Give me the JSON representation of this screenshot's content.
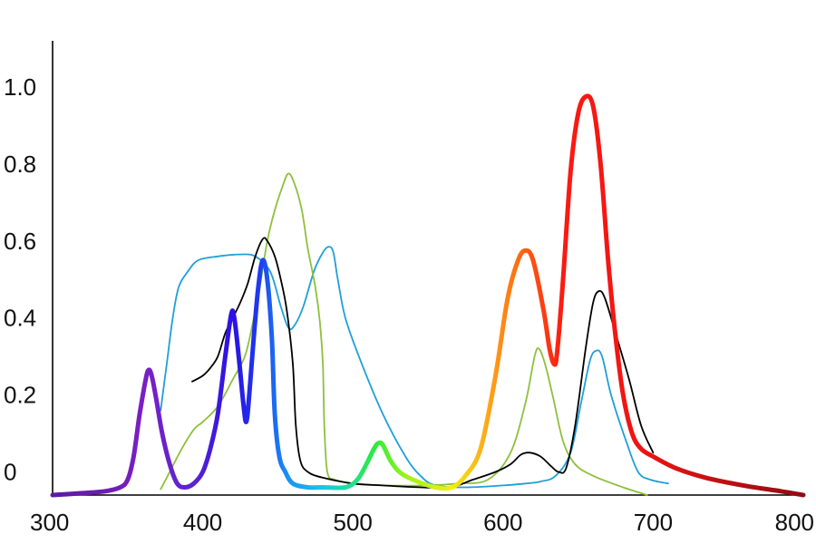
{
  "chart_data": {
    "type": "line",
    "title": "",
    "xlabel": "",
    "ylabel": "",
    "xlim": [
      300,
      800
    ],
    "ylim": [
      -0.06,
      1.12
    ],
    "grid": false,
    "legend": "none",
    "x_ticks": [
      {
        "value": 300,
        "label": "300"
      },
      {
        "value": 400,
        "label": "400"
      },
      {
        "value": 500,
        "label": "500"
      },
      {
        "value": 600,
        "label": "600"
      },
      {
        "value": 700,
        "label": "700"
      },
      {
        "value": 800,
        "label": "800"
      }
    ],
    "y_ticks": [
      {
        "value": 0.0,
        "label": "0"
      },
      {
        "value": 0.2,
        "label": "0.2"
      },
      {
        "value": 0.4,
        "label": "0.4"
      },
      {
        "value": 0.6,
        "label": "0.6"
      },
      {
        "value": 0.8,
        "label": "0.8"
      },
      {
        "value": 1.0,
        "label": "1.0"
      }
    ],
    "series": [
      {
        "id": "emission-spectrum",
        "color_mode": "wavelength-gradient",
        "stroke_width": 5,
        "points": [
          [
            300,
            -0.06
          ],
          [
            320,
            -0.055
          ],
          [
            335,
            -0.05
          ],
          [
            345,
            -0.04
          ],
          [
            350,
            -0.02
          ],
          [
            354,
            0.04
          ],
          [
            358,
            0.15
          ],
          [
            362,
            0.24
          ],
          [
            364,
            0.265
          ],
          [
            366,
            0.25
          ],
          [
            369,
            0.19
          ],
          [
            373,
            0.1
          ],
          [
            378,
            0.02
          ],
          [
            383,
            -0.03
          ],
          [
            388,
            -0.04
          ],
          [
            394,
            -0.03
          ],
          [
            400,
            0.0
          ],
          [
            405,
            0.06
          ],
          [
            410,
            0.15
          ],
          [
            415,
            0.3
          ],
          [
            419,
            0.41
          ],
          [
            421,
            0.4
          ],
          [
            424,
            0.3
          ],
          [
            427,
            0.18
          ],
          [
            429,
            0.13
          ],
          [
            431,
            0.2
          ],
          [
            434,
            0.35
          ],
          [
            437,
            0.48
          ],
          [
            440,
            0.55
          ],
          [
            443,
            0.5
          ],
          [
            446,
            0.35
          ],
          [
            448,
            0.15
          ],
          [
            451,
            0.04
          ],
          [
            455,
            0.0
          ],
          [
            460,
            -0.03
          ],
          [
            470,
            -0.04
          ],
          [
            480,
            -0.04
          ],
          [
            495,
            -0.04
          ],
          [
            503,
            -0.02
          ],
          [
            509,
            0.02
          ],
          [
            514,
            0.06
          ],
          [
            517,
            0.075
          ],
          [
            520,
            0.07
          ],
          [
            525,
            0.03
          ],
          [
            531,
            0.0
          ],
          [
            540,
            -0.02
          ],
          [
            555,
            -0.04
          ],
          [
            566,
            -0.04
          ],
          [
            575,
            -0.01
          ],
          [
            585,
            0.06
          ],
          [
            595,
            0.25
          ],
          [
            603,
            0.45
          ],
          [
            610,
            0.55
          ],
          [
            615,
            0.575
          ],
          [
            620,
            0.55
          ],
          [
            627,
            0.42
          ],
          [
            631,
            0.32
          ],
          [
            634,
            0.28
          ],
          [
            636,
            0.31
          ],
          [
            640,
            0.5
          ],
          [
            645,
            0.78
          ],
          [
            650,
            0.93
          ],
          [
            655,
            0.975
          ],
          [
            660,
            0.95
          ],
          [
            665,
            0.8
          ],
          [
            670,
            0.55
          ],
          [
            675,
            0.35
          ],
          [
            680,
            0.2
          ],
          [
            686,
            0.1
          ],
          [
            692,
            0.06
          ],
          [
            700,
            0.04
          ],
          [
            715,
            0.01
          ],
          [
            735,
            -0.015
          ],
          [
            760,
            -0.035
          ],
          [
            785,
            -0.05
          ],
          [
            800,
            -0.06
          ]
        ]
      },
      {
        "id": "absorption-cyan",
        "color": "#1ea0d8",
        "stroke_width": 1.8,
        "points": [
          [
            372,
            0.16
          ],
          [
            376,
            0.28
          ],
          [
            380,
            0.4
          ],
          [
            384,
            0.48
          ],
          [
            390,
            0.52
          ],
          [
            397,
            0.55
          ],
          [
            410,
            0.56
          ],
          [
            425,
            0.565
          ],
          [
            435,
            0.56
          ],
          [
            445,
            0.52
          ],
          [
            452,
            0.43
          ],
          [
            457,
            0.375
          ],
          [
            461,
            0.38
          ],
          [
            467,
            0.43
          ],
          [
            474,
            0.52
          ],
          [
            480,
            0.57
          ],
          [
            484,
            0.585
          ],
          [
            487,
            0.57
          ],
          [
            490,
            0.5
          ],
          [
            495,
            0.4
          ],
          [
            505,
            0.29
          ],
          [
            520,
            0.15
          ],
          [
            535,
            0.04
          ],
          [
            545,
            -0.01
          ],
          [
            555,
            -0.035
          ],
          [
            575,
            -0.04
          ],
          [
            600,
            -0.035
          ],
          [
            615,
            -0.03
          ],
          [
            625,
            -0.025
          ],
          [
            635,
            -0.01
          ],
          [
            645,
            0.05
          ],
          [
            652,
            0.18
          ],
          [
            658,
            0.29
          ],
          [
            662,
            0.315
          ],
          [
            666,
            0.3
          ],
          [
            672,
            0.2
          ],
          [
            682,
            0.08
          ],
          [
            690,
            0.0
          ],
          [
            698,
            -0.02
          ],
          [
            710,
            -0.03
          ]
        ]
      },
      {
        "id": "absorption-green",
        "color": "#8ec03c",
        "stroke_width": 1.8,
        "points": [
          [
            372,
            -0.045
          ],
          [
            378,
            0.0
          ],
          [
            386,
            0.06
          ],
          [
            394,
            0.11
          ],
          [
            400,
            0.13
          ],
          [
            410,
            0.17
          ],
          [
            420,
            0.24
          ],
          [
            428,
            0.3
          ],
          [
            433,
            0.38
          ],
          [
            438,
            0.48
          ],
          [
            443,
            0.6
          ],
          [
            448,
            0.68
          ],
          [
            453,
            0.74
          ],
          [
            457,
            0.775
          ],
          [
            461,
            0.75
          ],
          [
            466,
            0.68
          ],
          [
            470,
            0.58
          ],
          [
            475,
            0.48
          ],
          [
            478,
            0.39
          ],
          [
            480,
            0.28
          ],
          [
            481,
            0.12
          ],
          [
            483,
            0.0
          ],
          [
            488,
            -0.02
          ],
          [
            500,
            -0.03
          ],
          [
            520,
            -0.035
          ],
          [
            550,
            -0.035
          ],
          [
            570,
            -0.03
          ],
          [
            590,
            -0.02
          ],
          [
            605,
            0.05
          ],
          [
            615,
            0.18
          ],
          [
            621,
            0.3
          ],
          [
            624,
            0.32
          ],
          [
            628,
            0.28
          ],
          [
            633,
            0.2
          ],
          [
            640,
            0.08
          ],
          [
            648,
            0.02
          ],
          [
            660,
            -0.01
          ],
          [
            680,
            -0.04
          ],
          [
            696,
            -0.06
          ]
        ]
      },
      {
        "id": "absorption-black",
        "color": "#000000",
        "stroke_width": 1.8,
        "points": [
          [
            393,
            0.235
          ],
          [
            400,
            0.25
          ],
          [
            405,
            0.27
          ],
          [
            410,
            0.3
          ],
          [
            415,
            0.36
          ],
          [
            420,
            0.4
          ],
          [
            425,
            0.44
          ],
          [
            430,
            0.49
          ],
          [
            435,
            0.56
          ],
          [
            440,
            0.605
          ],
          [
            443,
            0.6
          ],
          [
            448,
            0.56
          ],
          [
            452,
            0.5
          ],
          [
            456,
            0.42
          ],
          [
            460,
            0.28
          ],
          [
            462,
            0.12
          ],
          [
            465,
            0.03
          ],
          [
            470,
            0.0
          ],
          [
            480,
            -0.015
          ],
          [
            500,
            -0.03
          ],
          [
            520,
            -0.035
          ],
          [
            545,
            -0.04
          ],
          [
            565,
            -0.04
          ],
          [
            580,
            -0.02
          ],
          [
            595,
            0.0
          ],
          [
            605,
            0.02
          ],
          [
            612,
            0.045
          ],
          [
            618,
            0.05
          ],
          [
            625,
            0.04
          ],
          [
            632,
            0.015
          ],
          [
            637,
            0.0
          ],
          [
            642,
            0.01
          ],
          [
            648,
            0.12
          ],
          [
            655,
            0.32
          ],
          [
            660,
            0.44
          ],
          [
            664,
            0.47
          ],
          [
            668,
            0.45
          ],
          [
            675,
            0.36
          ],
          [
            684,
            0.24
          ],
          [
            692,
            0.12
          ],
          [
            700,
            0.05
          ]
        ]
      }
    ]
  }
}
